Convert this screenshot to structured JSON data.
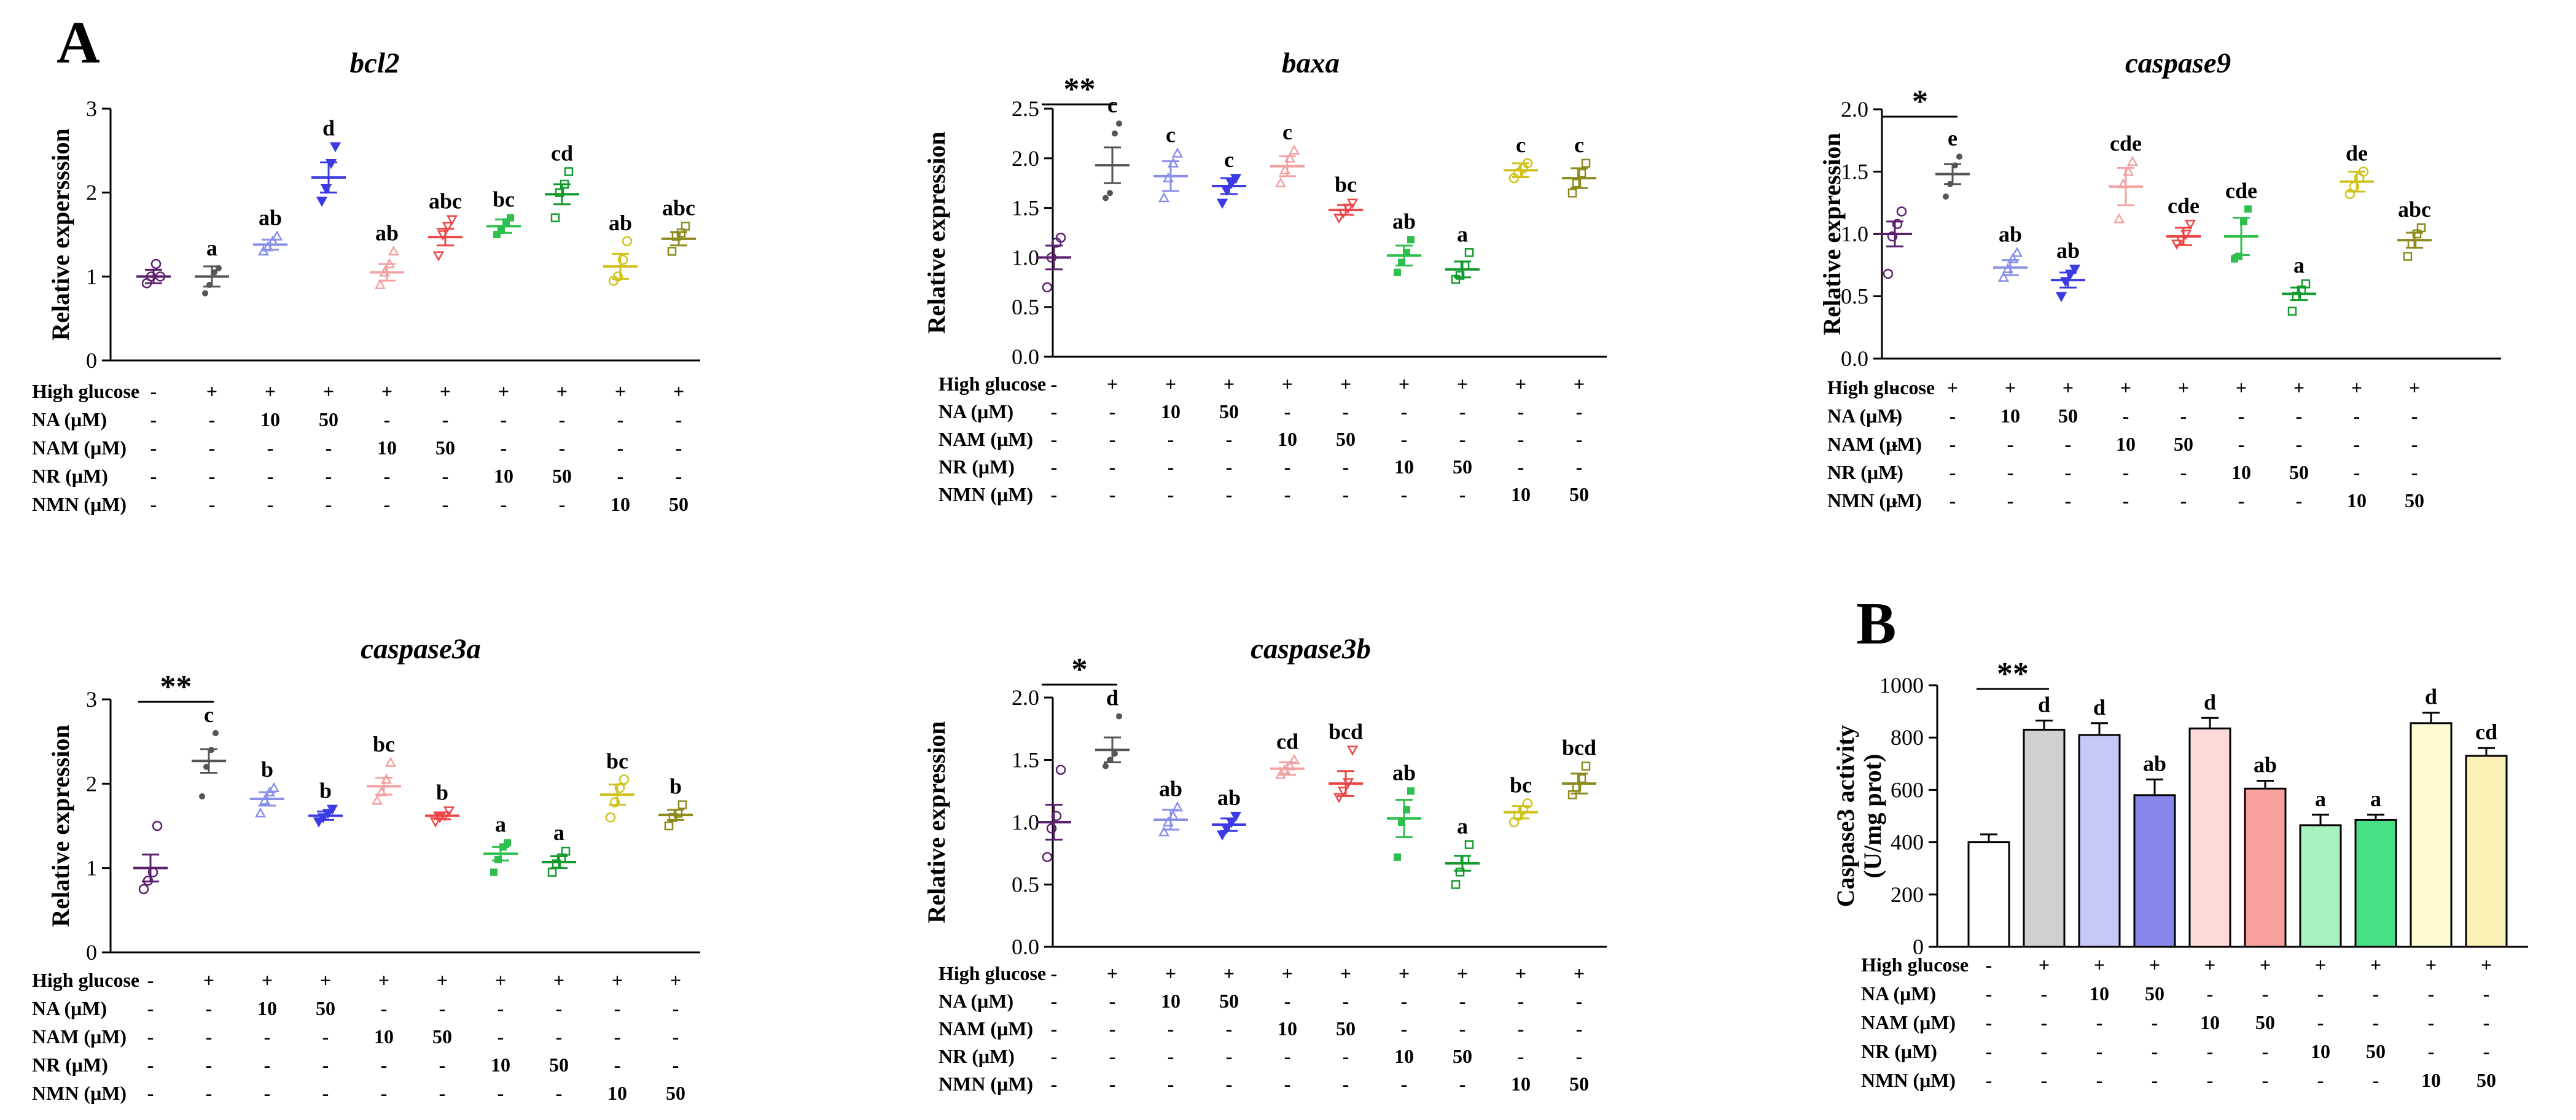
{
  "panel_labels": [
    "A",
    "B"
  ],
  "treatment": {
    "row_labels": [
      "High glucose",
      "NA (μM)",
      "NAM (μM)",
      "NR (μM)",
      "NMN (μM)"
    ],
    "rows": [
      [
        "-",
        "+",
        "+",
        "+",
        "+",
        "+",
        "+",
        "+",
        "+",
        "+"
      ],
      [
        "-",
        "-",
        "10",
        "50",
        "-",
        "-",
        "-",
        "-",
        "-",
        "-"
      ],
      [
        "-",
        "-",
        "-",
        "-",
        "10",
        "50",
        "-",
        "-",
        "-",
        "-"
      ],
      [
        "-",
        "-",
        "-",
        "-",
        "-",
        "-",
        "10",
        "50",
        "-",
        "-"
      ],
      [
        "-",
        "-",
        "-",
        "-",
        "-",
        "-",
        "-",
        "-",
        "10",
        "50"
      ]
    ]
  },
  "colors": {
    "groups": [
      "#5B1F6E",
      "#555555",
      "#8A8FEA",
      "#3B3BE3",
      "#F2A2A2",
      "#EC4545",
      "#2FBF4E",
      "#119A2C",
      "#CFC31B",
      "#8C8A1C"
    ],
    "bar_fills": [
      "#FFFFFF",
      "#D0D0D0",
      "#C7C8F7",
      "#8787EC",
      "#FCDADA",
      "#F8A09C",
      "#A6F3C0",
      "#48E084",
      "#FEFDD2",
      "#FAF2B4"
    ]
  },
  "chart_data": [
    {
      "type": "scatter",
      "title": "bcl2",
      "ylabel": "Relative expersssion",
      "ylim": [
        0,
        3
      ],
      "yticks": [
        "0",
        "1",
        "2",
        "3"
      ],
      "means": [
        1.0,
        1.0,
        1.38,
        2.18,
        1.05,
        1.47,
        1.6,
        1.98,
        1.12,
        1.45
      ],
      "errors": [
        0.08,
        0.12,
        0.06,
        0.18,
        0.1,
        0.1,
        0.08,
        0.12,
        0.15,
        0.08
      ],
      "points": [
        [
          0.92,
          1.0,
          1.15,
          1.0
        ],
        [
          0.8,
          0.9,
          1.05,
          1.1
        ],
        [
          1.3,
          1.35,
          1.42,
          1.48
        ],
        [
          1.9,
          2.05,
          2.35,
          2.55
        ],
        [
          0.9,
          1.05,
          1.15,
          1.3
        ],
        [
          1.25,
          1.5,
          1.6,
          1.68
        ],
        [
          1.5,
          1.55,
          1.65,
          1.7
        ],
        [
          1.7,
          2.0,
          2.1,
          2.25
        ],
        [
          0.95,
          1.0,
          1.2,
          1.42
        ],
        [
          1.3,
          1.48,
          1.52,
          1.6
        ]
      ],
      "labels": [
        "",
        "a",
        "ab",
        "d",
        "ab",
        "abc",
        "bc",
        "cd",
        "ab",
        "abc"
      ],
      "significance": null
    },
    {
      "type": "scatter",
      "title": "baxa",
      "ylabel": "Relative expression",
      "ylim": [
        0,
        2.5
      ],
      "yticks": [
        "0.0",
        "0.5",
        "1.0",
        "1.5",
        "2.0",
        "2.5"
      ],
      "means": [
        1.0,
        1.93,
        1.82,
        1.72,
        1.92,
        1.48,
        1.02,
        0.88,
        1.88,
        1.8
      ],
      "errors": [
        0.12,
        0.18,
        0.15,
        0.08,
        0.1,
        0.05,
        0.1,
        0.08,
        0.07,
        0.1
      ],
      "points": [
        [
          0.7,
          1.0,
          1.15,
          1.2
        ],
        [
          1.6,
          1.65,
          2.25,
          2.35
        ],
        [
          1.6,
          1.8,
          1.95,
          2.05
        ],
        [
          1.55,
          1.68,
          1.75,
          1.8
        ],
        [
          1.75,
          1.88,
          2.0,
          2.08
        ],
        [
          1.4,
          1.45,
          1.5,
          1.55
        ],
        [
          0.85,
          0.95,
          1.05,
          1.18
        ],
        [
          0.78,
          0.82,
          0.92,
          1.05
        ],
        [
          1.8,
          1.85,
          1.9,
          1.95
        ],
        [
          1.65,
          1.75,
          1.85,
          1.95
        ]
      ],
      "labels": [
        "",
        "c",
        "c",
        "c",
        "c",
        "bc",
        "ab",
        "a",
        "c",
        "c"
      ],
      "significance": "**"
    },
    {
      "type": "scatter",
      "title": "caspase9",
      "ylabel": "Relative expression",
      "ylim": [
        0,
        2.0
      ],
      "yticks": [
        "0.0",
        "0.5",
        "1.0",
        "1.5",
        "2.0"
      ],
      "means": [
        1.0,
        1.48,
        0.73,
        0.63,
        1.38,
        0.98,
        0.98,
        0.52,
        1.42,
        0.95
      ],
      "errors": [
        0.1,
        0.08,
        0.06,
        0.06,
        0.15,
        0.07,
        0.15,
        0.05,
        0.08,
        0.06
      ],
      "points": [
        [
          0.68,
          0.98,
          1.08,
          1.18
        ],
        [
          1.3,
          1.4,
          1.55,
          1.62
        ],
        [
          0.65,
          0.72,
          0.8,
          0.85
        ],
        [
          0.5,
          0.62,
          0.68,
          0.72
        ],
        [
          1.12,
          1.4,
          1.5,
          1.58
        ],
        [
          0.92,
          0.95,
          1.0,
          1.08
        ],
        [
          0.8,
          0.82,
          1.1,
          1.2
        ],
        [
          0.38,
          0.5,
          0.55,
          0.6
        ],
        [
          1.32,
          1.38,
          1.45,
          1.5
        ],
        [
          0.82,
          0.92,
          1.0,
          1.05
        ]
      ],
      "labels": [
        "",
        "e",
        "ab",
        "ab",
        "cde",
        "cde",
        "cde",
        "a",
        "de",
        "abc"
      ],
      "significance": "*"
    },
    {
      "type": "scatter",
      "title": "caspase3a",
      "ylabel": "Relative expression",
      "ylim": [
        0,
        3
      ],
      "yticks": [
        "0",
        "1",
        "2",
        "3"
      ],
      "means": [
        1.0,
        2.27,
        1.82,
        1.62,
        1.97,
        1.62,
        1.17,
        1.07,
        1.87,
        1.63
      ],
      "errors": [
        0.16,
        0.14,
        0.08,
        0.05,
        0.1,
        0.04,
        0.08,
        0.07,
        0.12,
        0.06
      ],
      "points": [
        [
          0.75,
          0.85,
          0.95,
          1.5
        ],
        [
          1.85,
          2.2,
          2.4,
          2.6
        ],
        [
          1.65,
          1.8,
          1.9,
          1.95
        ],
        [
          1.55,
          1.6,
          1.65,
          1.7
        ],
        [
          1.8,
          1.9,
          2.05,
          2.25
        ],
        [
          1.55,
          1.6,
          1.62,
          1.68
        ],
        [
          0.95,
          1.1,
          1.25,
          1.3
        ],
        [
          0.95,
          1.05,
          1.12,
          1.2
        ],
        [
          1.6,
          1.78,
          1.95,
          2.05
        ],
        [
          1.5,
          1.6,
          1.65,
          1.75
        ]
      ],
      "labels": [
        "",
        "c",
        "b",
        "b",
        "bc",
        "b",
        "a",
        "a",
        "bc",
        "b"
      ],
      "significance": "**"
    },
    {
      "type": "scatter",
      "title": "caspase3b",
      "ylabel": "Relative expression",
      "ylim": [
        0,
        2.0
      ],
      "yticks": [
        "0.0",
        "0.5",
        "1.0",
        "1.5",
        "2.0"
      ],
      "means": [
        1.0,
        1.58,
        1.02,
        0.98,
        1.43,
        1.31,
        1.03,
        0.67,
        1.08,
        1.31
      ],
      "errors": [
        0.14,
        0.1,
        0.08,
        0.05,
        0.05,
        0.1,
        0.15,
        0.06,
        0.05,
        0.08
      ],
      "points": [
        [
          0.72,
          0.95,
          1.05,
          1.42
        ],
        [
          1.45,
          1.5,
          1.55,
          1.85
        ],
        [
          0.92,
          1.0,
          1.05,
          1.12
        ],
        [
          0.9,
          0.95,
          1.0,
          1.05
        ],
        [
          1.38,
          1.42,
          1.45,
          1.5
        ],
        [
          1.2,
          1.25,
          1.32,
          1.58
        ],
        [
          0.72,
          1.0,
          1.1,
          1.25
        ],
        [
          0.5,
          0.6,
          0.7,
          0.82
        ],
        [
          1.0,
          1.05,
          1.1,
          1.15
        ],
        [
          1.22,
          1.28,
          1.35,
          1.45
        ]
      ],
      "labels": [
        "",
        "d",
        "ab",
        "ab",
        "cd",
        "bcd",
        "ab",
        "a",
        "bc",
        "bcd"
      ],
      "significance": "*"
    },
    {
      "type": "bar",
      "title": "",
      "ylabel_lines": [
        "Caspase3 activity",
        "(U/mg prot)"
      ],
      "ylim": [
        0,
        1000
      ],
      "yticks": [
        "0",
        "200",
        "400",
        "600",
        "800",
        "1000"
      ],
      "values": [
        400,
        830,
        810,
        580,
        835,
        605,
        465,
        485,
        855,
        730
      ],
      "errors": [
        30,
        35,
        45,
        60,
        40,
        30,
        40,
        20,
        40,
        30
      ],
      "labels": [
        "",
        "d",
        "d",
        "ab",
        "d",
        "ab",
        "a",
        "a",
        "d",
        "cd"
      ],
      "significance": "**"
    }
  ]
}
